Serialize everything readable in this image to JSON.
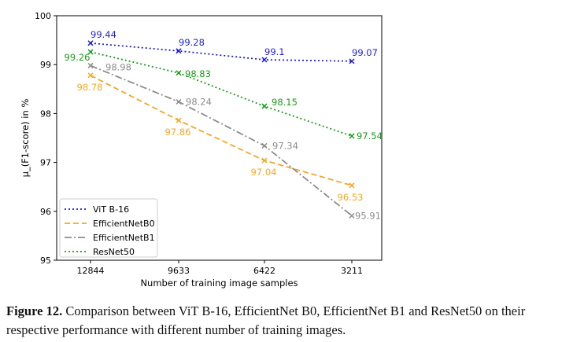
{
  "chart_data": {
    "type": "line",
    "xlabel": "Number of training image samples",
    "ylabel": "μ_(F1-score) in %",
    "categories": [
      "12844",
      "9633",
      "6422",
      "3211"
    ],
    "ylim": [
      95,
      100
    ],
    "yticks": [
      "95",
      "96",
      "97",
      "98",
      "99",
      "100"
    ],
    "legend_position": "lower-left",
    "series": [
      {
        "name": "ViT B-16",
        "color": "#1f1fd6",
        "style": "dotted",
        "values": [
          99.44,
          99.28,
          99.1,
          99.07
        ],
        "labels": [
          "99.44",
          "99.28",
          "99.1",
          "99.07"
        ]
      },
      {
        "name": "EfficientNetB0",
        "color": "#f5a623",
        "style": "dashed",
        "values": [
          98.78,
          97.86,
          97.04,
          96.53
        ],
        "labels": [
          "98.78",
          "97.86",
          "97.04",
          "96.53"
        ]
      },
      {
        "name": "EfficientNetB1",
        "color": "#8c8c8c",
        "style": "dashdot",
        "values": [
          98.98,
          98.24,
          97.34,
          95.91
        ],
        "labels": [
          "98.98",
          "98.24",
          "97.34",
          "95.91"
        ]
      },
      {
        "name": "ResNet50",
        "color": "#1a9a1a",
        "style": "dotted",
        "values": [
          99.26,
          98.83,
          98.15,
          97.54
        ],
        "labels": [
          "99.26",
          "98.83",
          "98.15",
          "97.54"
        ]
      }
    ]
  },
  "caption": {
    "label": "Figure 12.",
    "text": "Comparison between ViT B-16, EfficientNet B0, EfficientNet B1 and ResNet50 on their respective performance with different number of training images."
  }
}
